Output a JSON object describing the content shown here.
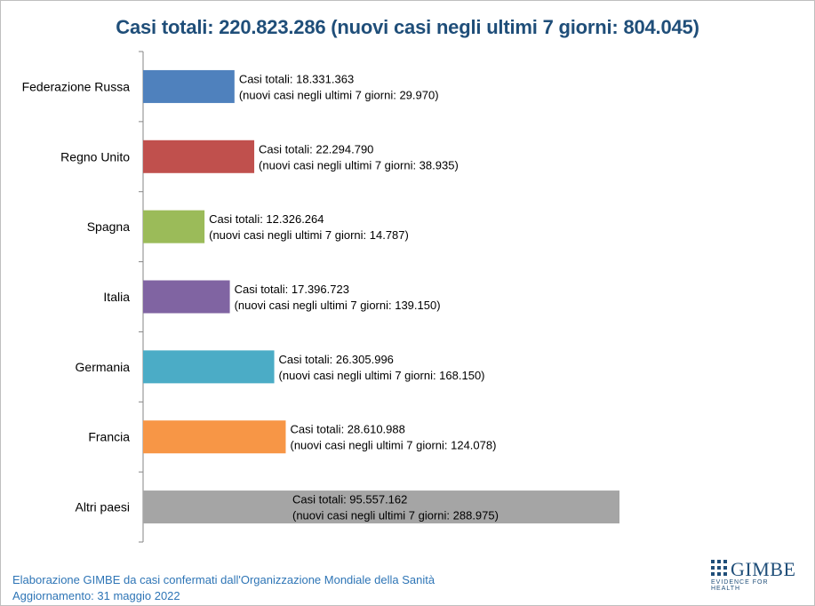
{
  "chart_data": {
    "type": "bar",
    "orientation": "horizontal",
    "title": "Casi totali: 220.823.286 (nuovi casi negli ultimi 7 giorni: 804.045)",
    "categories": [
      "Federazione Russa",
      "Regno Unito",
      "Spagna",
      "Italia",
      "Germania",
      "Francia",
      "Altri paesi"
    ],
    "values": [
      18331363,
      22294790,
      12326264,
      17396723,
      26305996,
      28610988,
      95557162
    ],
    "colors": [
      "#4f81bd",
      "#c0504d",
      "#9bbb59",
      "#8064a2",
      "#4bacc6",
      "#f79646",
      "#a5a5a5"
    ],
    "labels_line1": [
      "Casi totali: 18.331.363",
      "Casi totali: 22.294.790",
      "Casi totali: 12.326.264",
      "Casi totali: 17.396.723",
      "Casi totali: 26.305.996",
      "Casi totali: 28.610.988",
      "Casi totali: 95.557.162"
    ],
    "labels_line2": [
      "(nuovi casi negli ultimi 7 giorni: 29.970)",
      "(nuovi casi negli ultimi 7 giorni: 38.935)",
      "(nuovi casi negli ultimi 7 giorni: 14.787)",
      "(nuovi casi negli ultimi 7 giorni: 139.150)",
      "(nuovi casi negli ultimi 7 giorni: 168.150)",
      "(nuovi casi negli ultimi 7 giorni: 124.078)",
      "(nuovi casi negli ultimi 7 giorni: 288.975)"
    ],
    "xlim": [
      0,
      100000000
    ],
    "grid": false,
    "legend": "none"
  },
  "footer": {
    "line1": "Elaborazione GIMBE da casi confermati dall'Organizzazione Mondiale della Sanità",
    "line2": "Aggiornamento: 31 maggio 2022"
  },
  "logo": {
    "name": "GIMBE",
    "tagline": "EVIDENCE FOR HEALTH",
    "color": "#1f4e79"
  }
}
